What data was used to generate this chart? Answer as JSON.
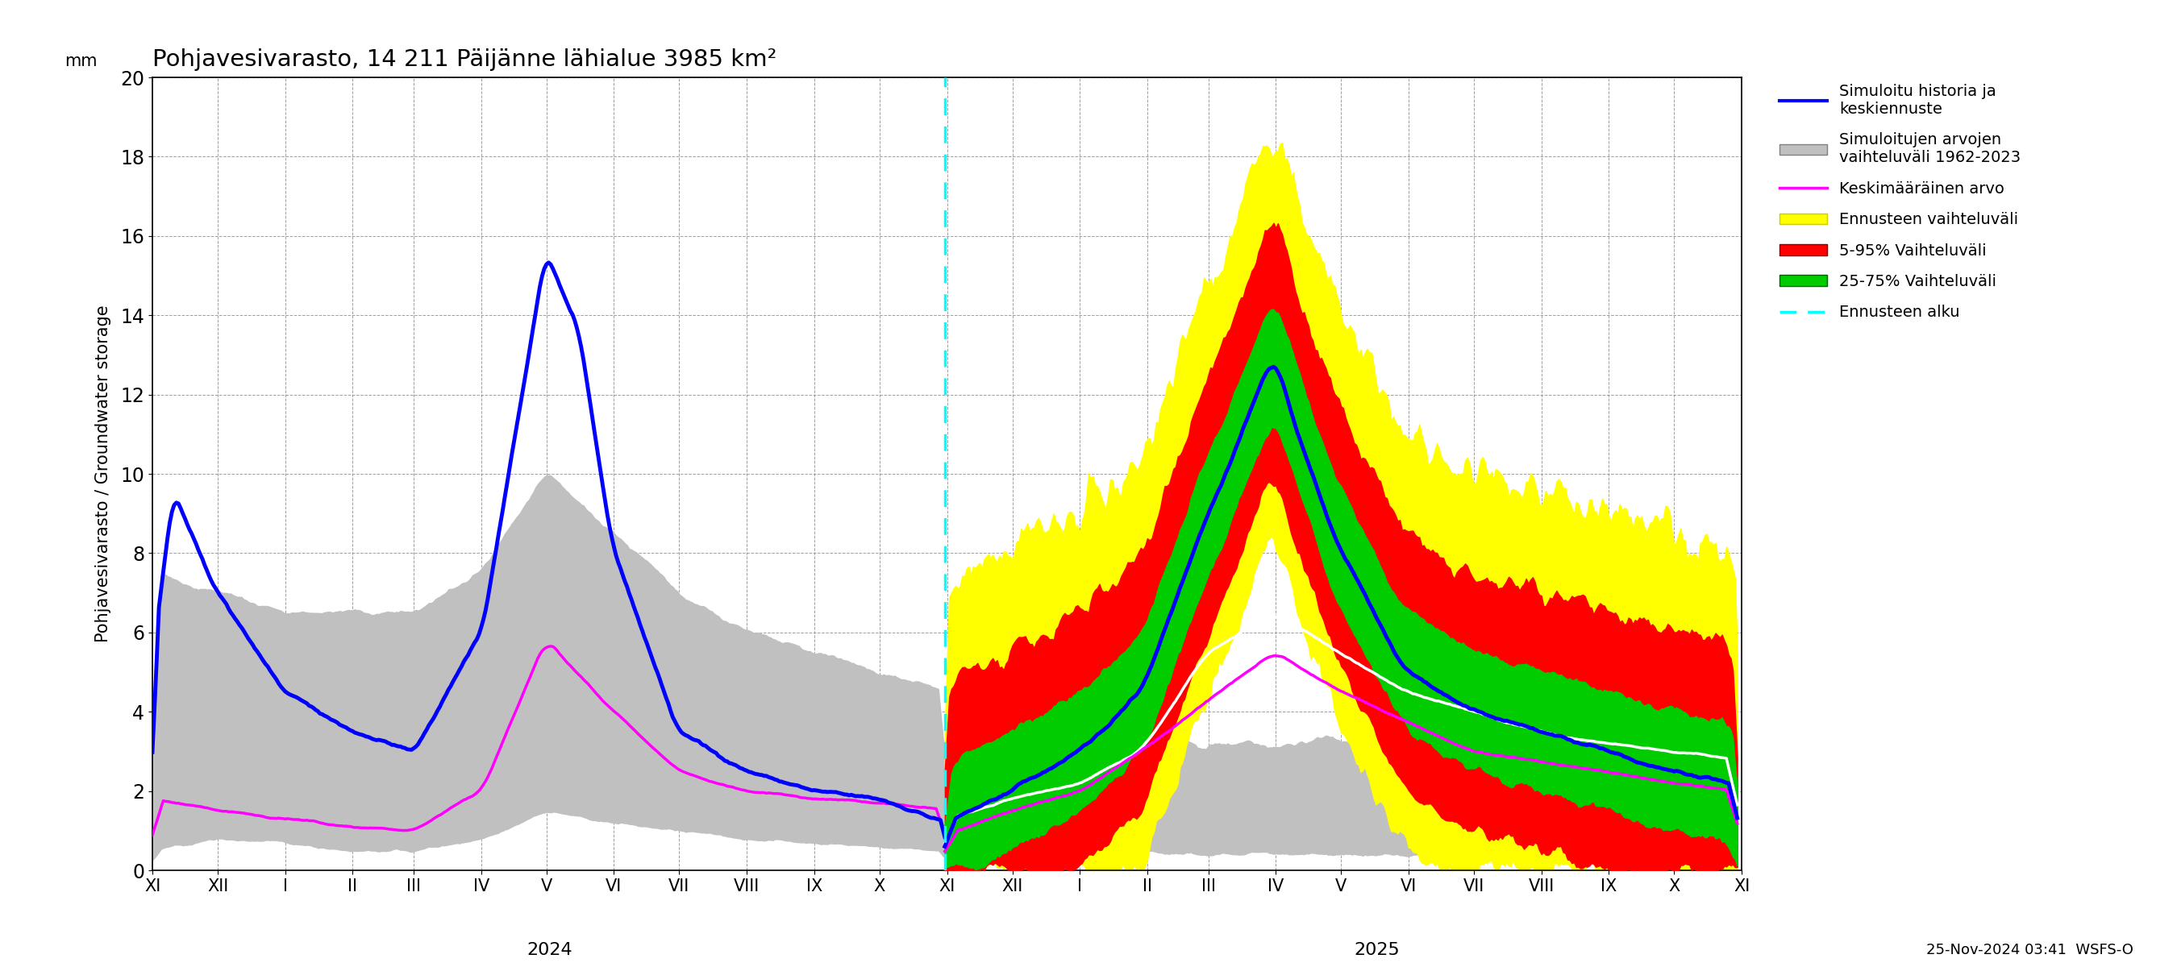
{
  "title": "Pohjavesivarasto, 14 211 Päijänne lähialue 3985 km²",
  "ylabel_fi": "Pohjavesivarasto / Groundwater storage",
  "ylabel_mm": "mm",
  "xlabel_date": "25-Nov-2024 03:41  WSFS-O",
  "ylim": [
    0,
    20
  ],
  "yticks": [
    0,
    2,
    4,
    6,
    8,
    10,
    12,
    14,
    16,
    18,
    20
  ],
  "colors": {
    "blue": "#0000FF",
    "gray_fill": "#C0C0C0",
    "magenta": "#FF00FF",
    "yellow": "#FFFF00",
    "red": "#FF0000",
    "green": "#00CC00",
    "white": "#FFFFFF",
    "cyan_dashed": "#00FFFF",
    "background": "#FFFFFF"
  },
  "month_labels": [
    "XI",
    "XII",
    "I",
    "II",
    "III",
    "IV",
    "V",
    "VI",
    "VII",
    "VIII",
    "IX",
    "X",
    "XI",
    "XII",
    "I",
    "II",
    "III",
    "IV",
    "V",
    "VI",
    "VII",
    "VIII",
    "IX",
    "X",
    "XI"
  ],
  "month_lengths": [
    30,
    31,
    31,
    28,
    31,
    30,
    31,
    30,
    31,
    31,
    30,
    31,
    30,
    31,
    31,
    28,
    31,
    30,
    31,
    30,
    31,
    31,
    30,
    31,
    30
  ],
  "year_2024_label": "2024",
  "year_2025_label": "2025",
  "n_hist": 365,
  "n_fore": 365
}
